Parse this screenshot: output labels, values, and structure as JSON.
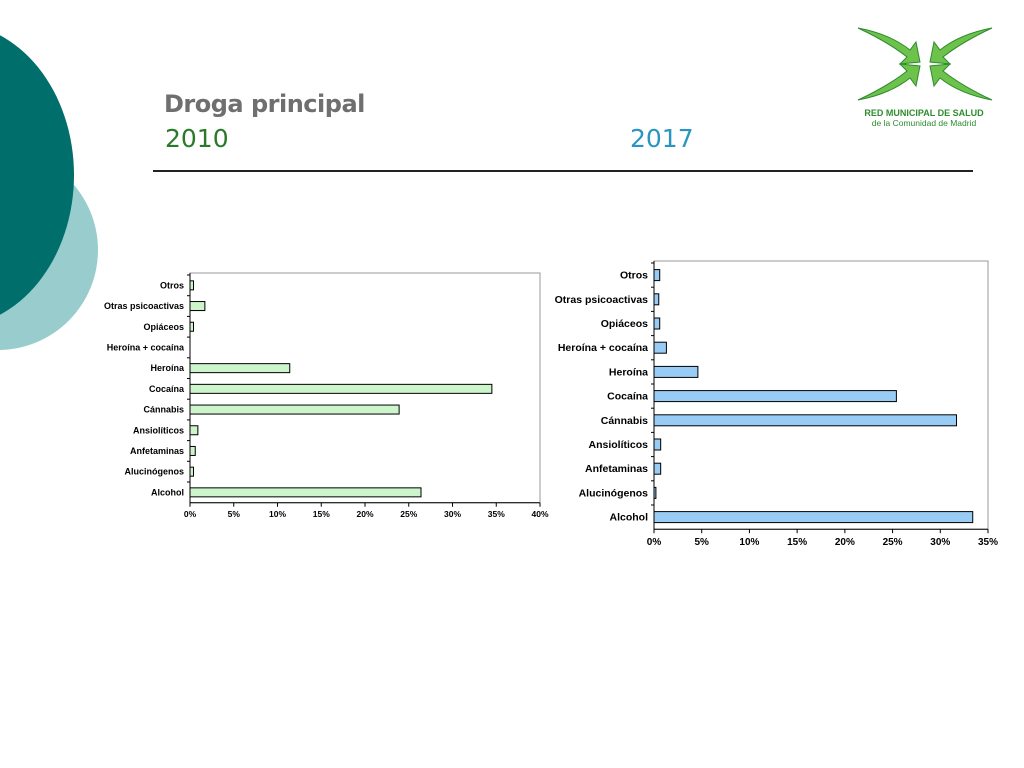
{
  "slide": {
    "title": "Droga principal",
    "year_left": "2010",
    "year_right": "2017"
  },
  "logo": {
    "line1": "RED MUNICIPAL DE SALUD",
    "line2": "de la Comunidad de Madrid"
  },
  "colors": {
    "bar_2010": "#ccf5cc",
    "bar_2017": "#99ccf5",
    "teal_dark": "#006e6b",
    "teal_light": "#99cccc",
    "logo_green": "#6cc24a"
  },
  "chart_data": [
    {
      "type": "bar",
      "orientation": "horizontal",
      "year": "2010",
      "categories": [
        "Otros",
        "Otras psicoactivas",
        "Opiáceos",
        "Heroína + cocaína",
        "Heroína",
        "Cocaína",
        "Cánnabis",
        "Ansiolíticos",
        "Anfetaminas",
        "Alucinógenos",
        "Alcohol"
      ],
      "values": [
        0.4,
        1.7,
        0.4,
        0,
        11.4,
        34.5,
        23.9,
        0.9,
        0.6,
        0.4,
        26.4
      ],
      "xlim": [
        0,
        40
      ],
      "xticks": [
        "0%",
        "5%",
        "10%",
        "15%",
        "20%",
        "25%",
        "30%",
        "35%",
        "40%"
      ],
      "title": "",
      "xlabel": "",
      "ylabel": "",
      "grid": false
    },
    {
      "type": "bar",
      "orientation": "horizontal",
      "year": "2017",
      "categories": [
        "Otros",
        "Otras psicoactivas",
        "Opiáceos",
        "Heroína + cocaína",
        "Heroína",
        "Cocaína",
        "Cánnabis",
        "Ansiolíticos",
        "Anfetaminas",
        "Alucinógenos",
        "Alcohol"
      ],
      "values": [
        0.6,
        0.5,
        0.6,
        1.3,
        4.6,
        25.4,
        31.7,
        0.7,
        0.7,
        0.2,
        33.4
      ],
      "xlim": [
        0,
        35
      ],
      "xticks": [
        "0%",
        "5%",
        "10%",
        "15%",
        "20%",
        "25%",
        "30%",
        "35%"
      ],
      "title": "",
      "xlabel": "",
      "ylabel": "",
      "grid": false
    }
  ]
}
